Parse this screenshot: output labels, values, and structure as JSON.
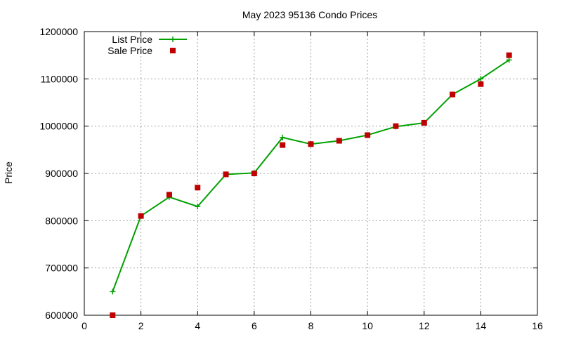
{
  "chart_data": {
    "type": "line",
    "title": "May 2023 95136 Condo Prices",
    "xlabel": "",
    "ylabel": "Price",
    "xlim": [
      0,
      16
    ],
    "ylim": [
      600000,
      1200000
    ],
    "xticks": [
      0,
      2,
      4,
      6,
      8,
      10,
      12,
      14,
      16
    ],
    "yticks": [
      600000,
      700000,
      800000,
      900000,
      1000000,
      1100000,
      1200000
    ],
    "grid": true,
    "legend": "top-left",
    "series": [
      {
        "name": "List Price",
        "style": "line+cross",
        "color": "#00a000",
        "x": [
          1,
          2,
          3,
          4,
          5,
          6,
          7,
          8,
          9,
          10,
          11,
          12,
          13,
          14,
          15
        ],
        "y": [
          650000,
          810000,
          850000,
          830000,
          898000,
          901000,
          976000,
          962000,
          969000,
          981000,
          999000,
          1007000,
          1067000,
          1100000,
          1140000
        ]
      },
      {
        "name": "Sale Price",
        "style": "square",
        "color": "#c00000",
        "x": [
          1,
          2,
          3,
          4,
          5,
          6,
          7,
          8,
          9,
          10,
          11,
          12,
          13,
          14,
          15
        ],
        "y": [
          600000,
          810000,
          855000,
          870000,
          898000,
          900000,
          960000,
          962000,
          969000,
          981000,
          1000000,
          1007000,
          1067000,
          1089000,
          1150000
        ]
      }
    ]
  }
}
